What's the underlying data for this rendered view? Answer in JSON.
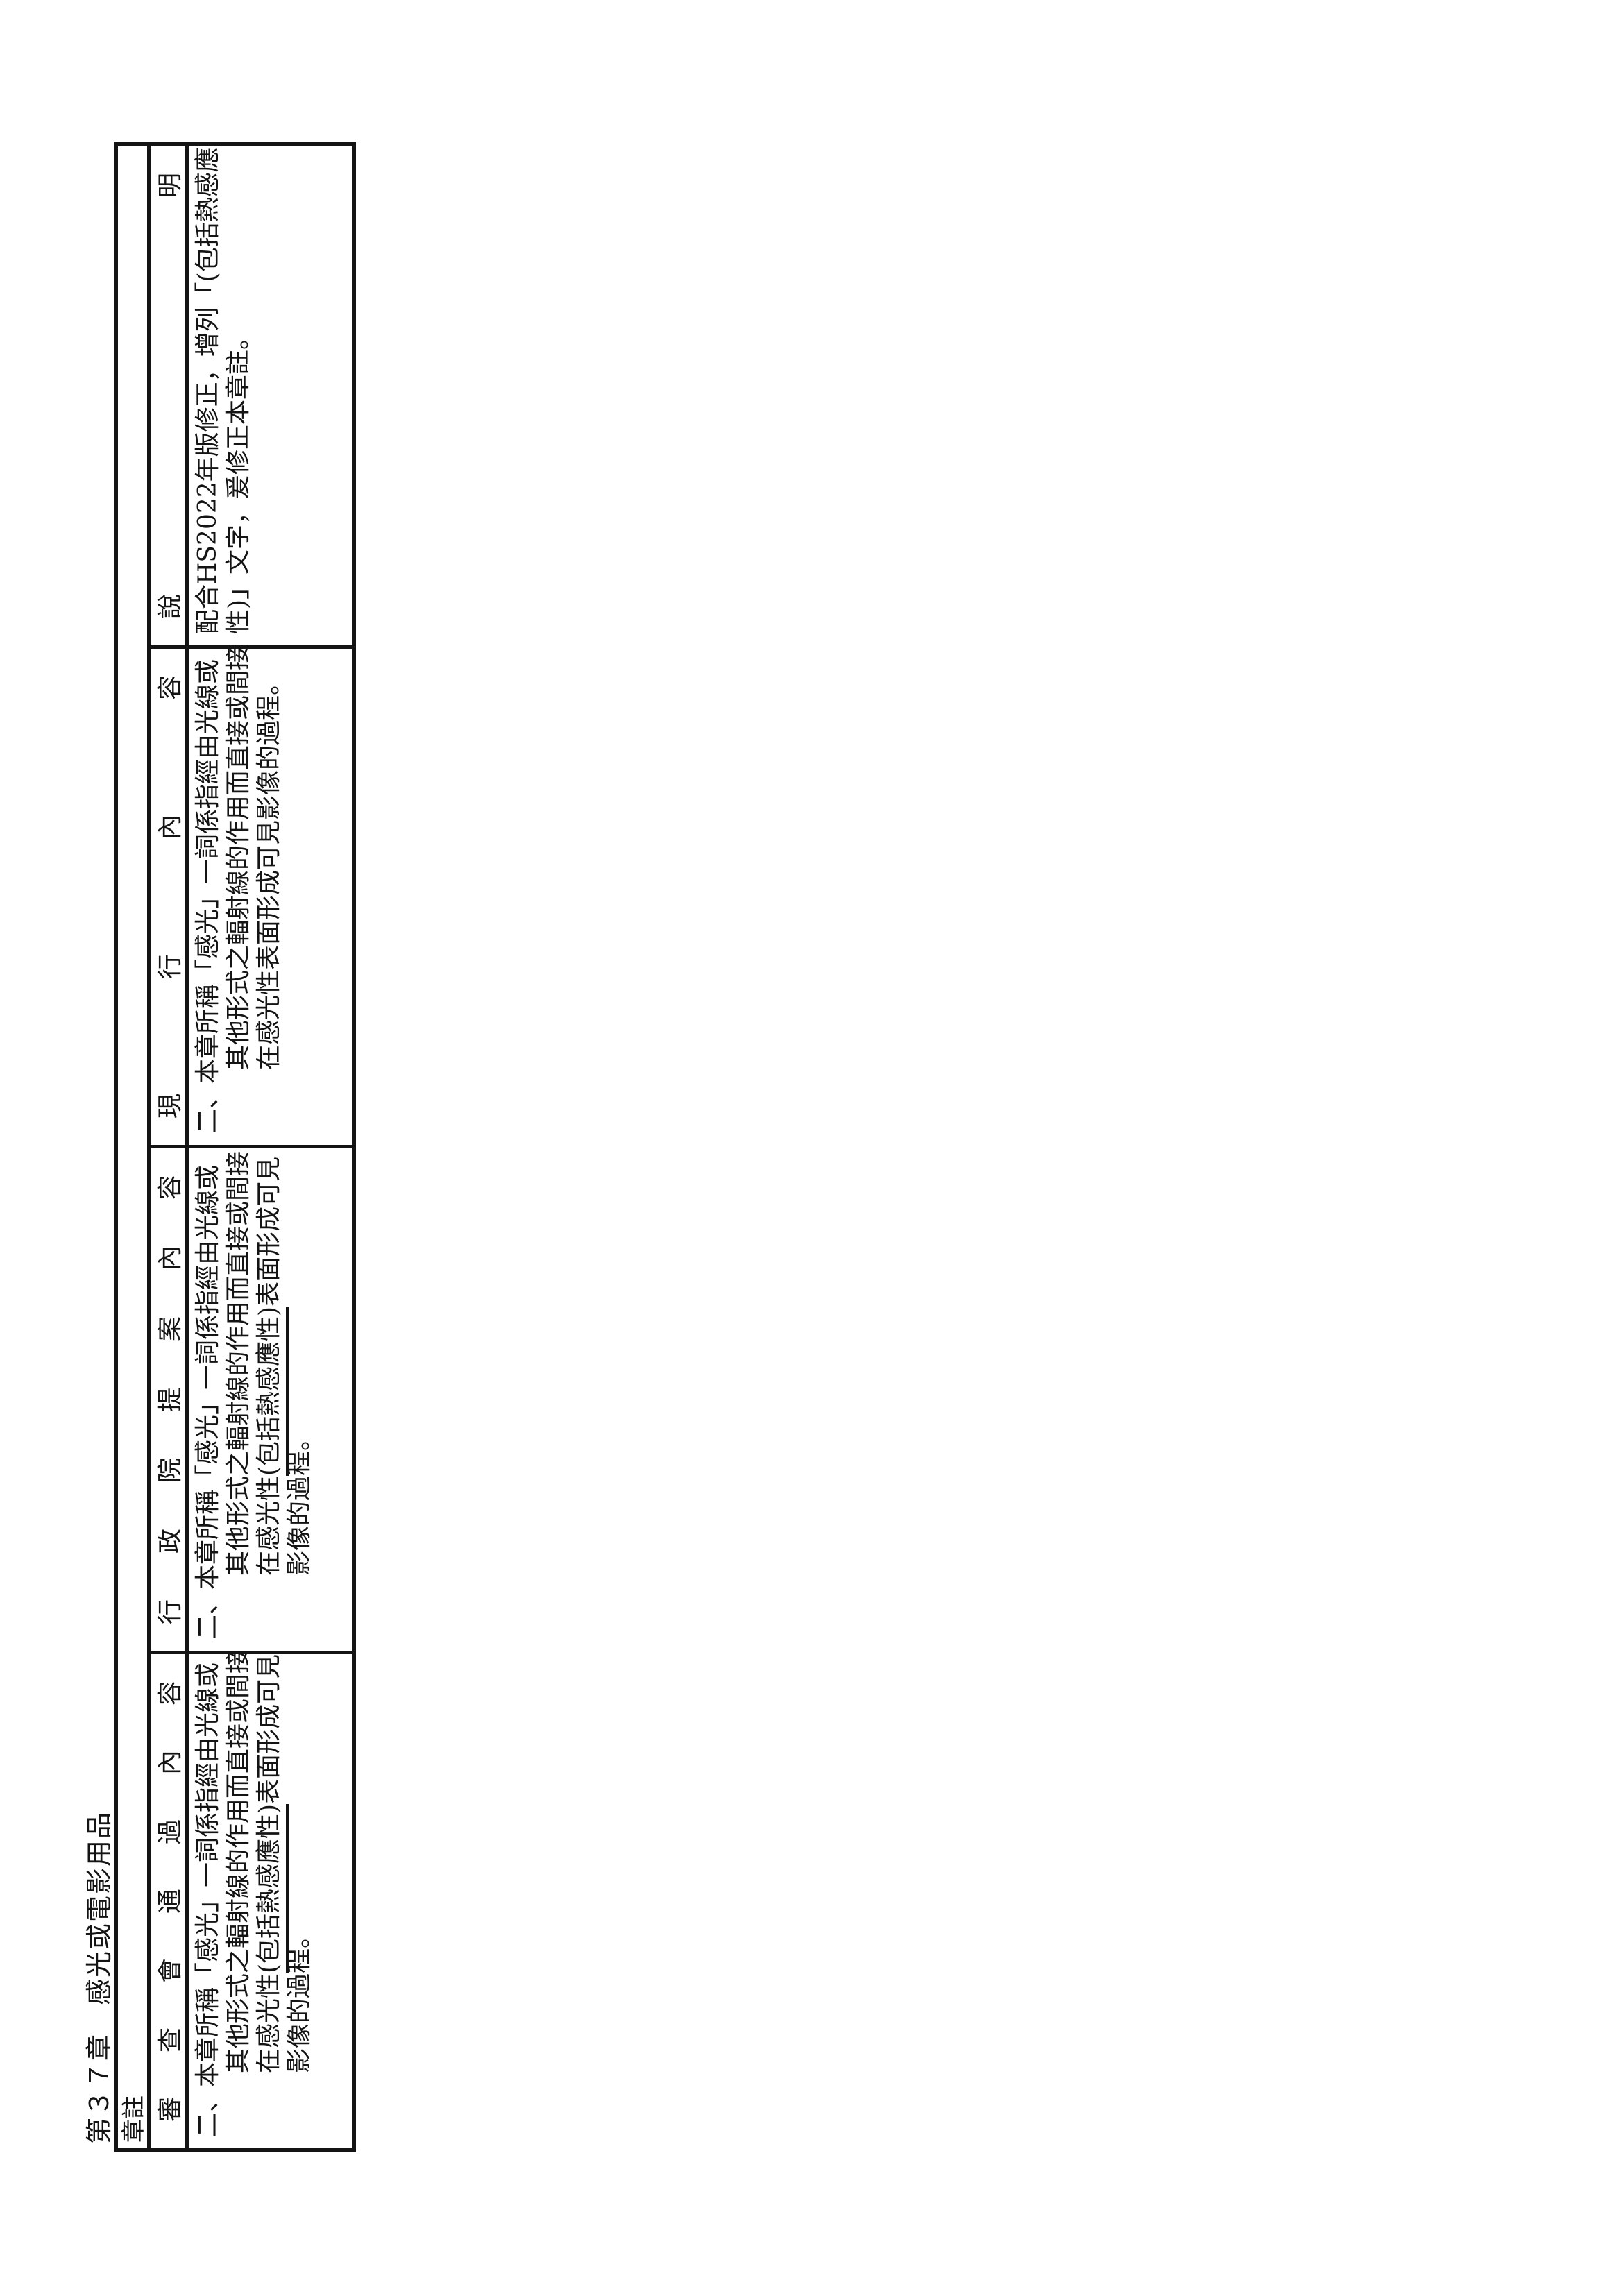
{
  "page": {
    "title": "第３７章　感光或電影用品",
    "note_row_label": "章註",
    "colors": {
      "ink": "#141414",
      "paper": "#ffffff"
    },
    "table": {
      "columns": [
        {
          "header": "審查會通過內容",
          "lines": [
            {
              "text": "二、本章所稱「感光」一詞係指經由光線或"
            },
            {
              "text": "其他形式之輻射線的作用而直接或間接",
              "indent": true
            },
            {
              "segments": [
                {
                  "t": "在感光性"
                },
                {
                  "t": "(包括熱感應性)",
                  "u": true
                },
                {
                  "t": "表面形成可見"
                }
              ],
              "indent": true
            },
            {
              "text": "影像的過程。",
              "indent": true
            }
          ]
        },
        {
          "header": "行政院提案內容",
          "lines": [
            {
              "text": "二、本章所稱「感光」一詞係指經由光線或"
            },
            {
              "text": "其他形式之輻射線的作用而直接或間接",
              "indent": true
            },
            {
              "segments": [
                {
                  "t": "在感光性"
                },
                {
                  "t": "(包括熱感應性)",
                  "u": true
                },
                {
                  "t": "表面形成可見"
                }
              ],
              "indent": true
            },
            {
              "text": "影像的過程。",
              "indent": true
            }
          ]
        },
        {
          "header": "現行內容",
          "lines": [
            {
              "text": "二、本章所稱「感光」一詞係指經由光線或"
            },
            {
              "text": "其他形式之輻射線的作用而直接或間接",
              "indent": true
            },
            {
              "text": "在感光性表面形成可見影像的過程。",
              "indent": true
            }
          ]
        },
        {
          "header": "說明",
          "lines": [
            {
              "text": "配合HS2022年版修正，增列「(包括熱感應"
            },
            {
              "text": "性)」文字，爰修正本章註。"
            }
          ]
        }
      ]
    }
  }
}
